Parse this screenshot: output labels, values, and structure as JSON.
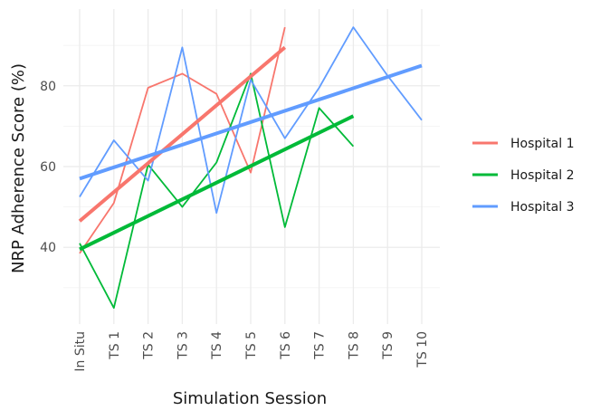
{
  "chart_data": {
    "type": "line",
    "title": "",
    "xlabel": "Simulation Session",
    "ylabel": "NRP Adherence Score (%)",
    "categories": [
      "In Situ",
      "TS 1",
      "TS 2",
      "TS 3",
      "TS 4",
      "TS 5",
      "TS 6",
      "TS 7",
      "TS 8",
      "TS 9",
      "TS 10"
    ],
    "ylim": [
      21,
      99
    ],
    "y_ticks": [
      40,
      60,
      80
    ],
    "grid": true,
    "legend": "right",
    "series": [
      {
        "name": "Hospital 1",
        "color": "#F8766D",
        "values": [
          38.5,
          51,
          79.5,
          83,
          78,
          58.5,
          94.5,
          null,
          null,
          null,
          null
        ],
        "trend": [
          46.5,
          89.5
        ]
      },
      {
        "name": "Hospital 2",
        "color": "#00BA38",
        "values": [
          41,
          25,
          60.5,
          50,
          61,
          83,
          45,
          74.5,
          65,
          null,
          null
        ],
        "trend": [
          39.5,
          72.5
        ]
      },
      {
        "name": "Hospital 3",
        "color": "#619CFF",
        "values": [
          52.5,
          66.5,
          56.5,
          89.5,
          48.5,
          81.5,
          67,
          79.5,
          94.5,
          82.5,
          71.5
        ],
        "trend": [
          57,
          85
        ]
      }
    ]
  }
}
